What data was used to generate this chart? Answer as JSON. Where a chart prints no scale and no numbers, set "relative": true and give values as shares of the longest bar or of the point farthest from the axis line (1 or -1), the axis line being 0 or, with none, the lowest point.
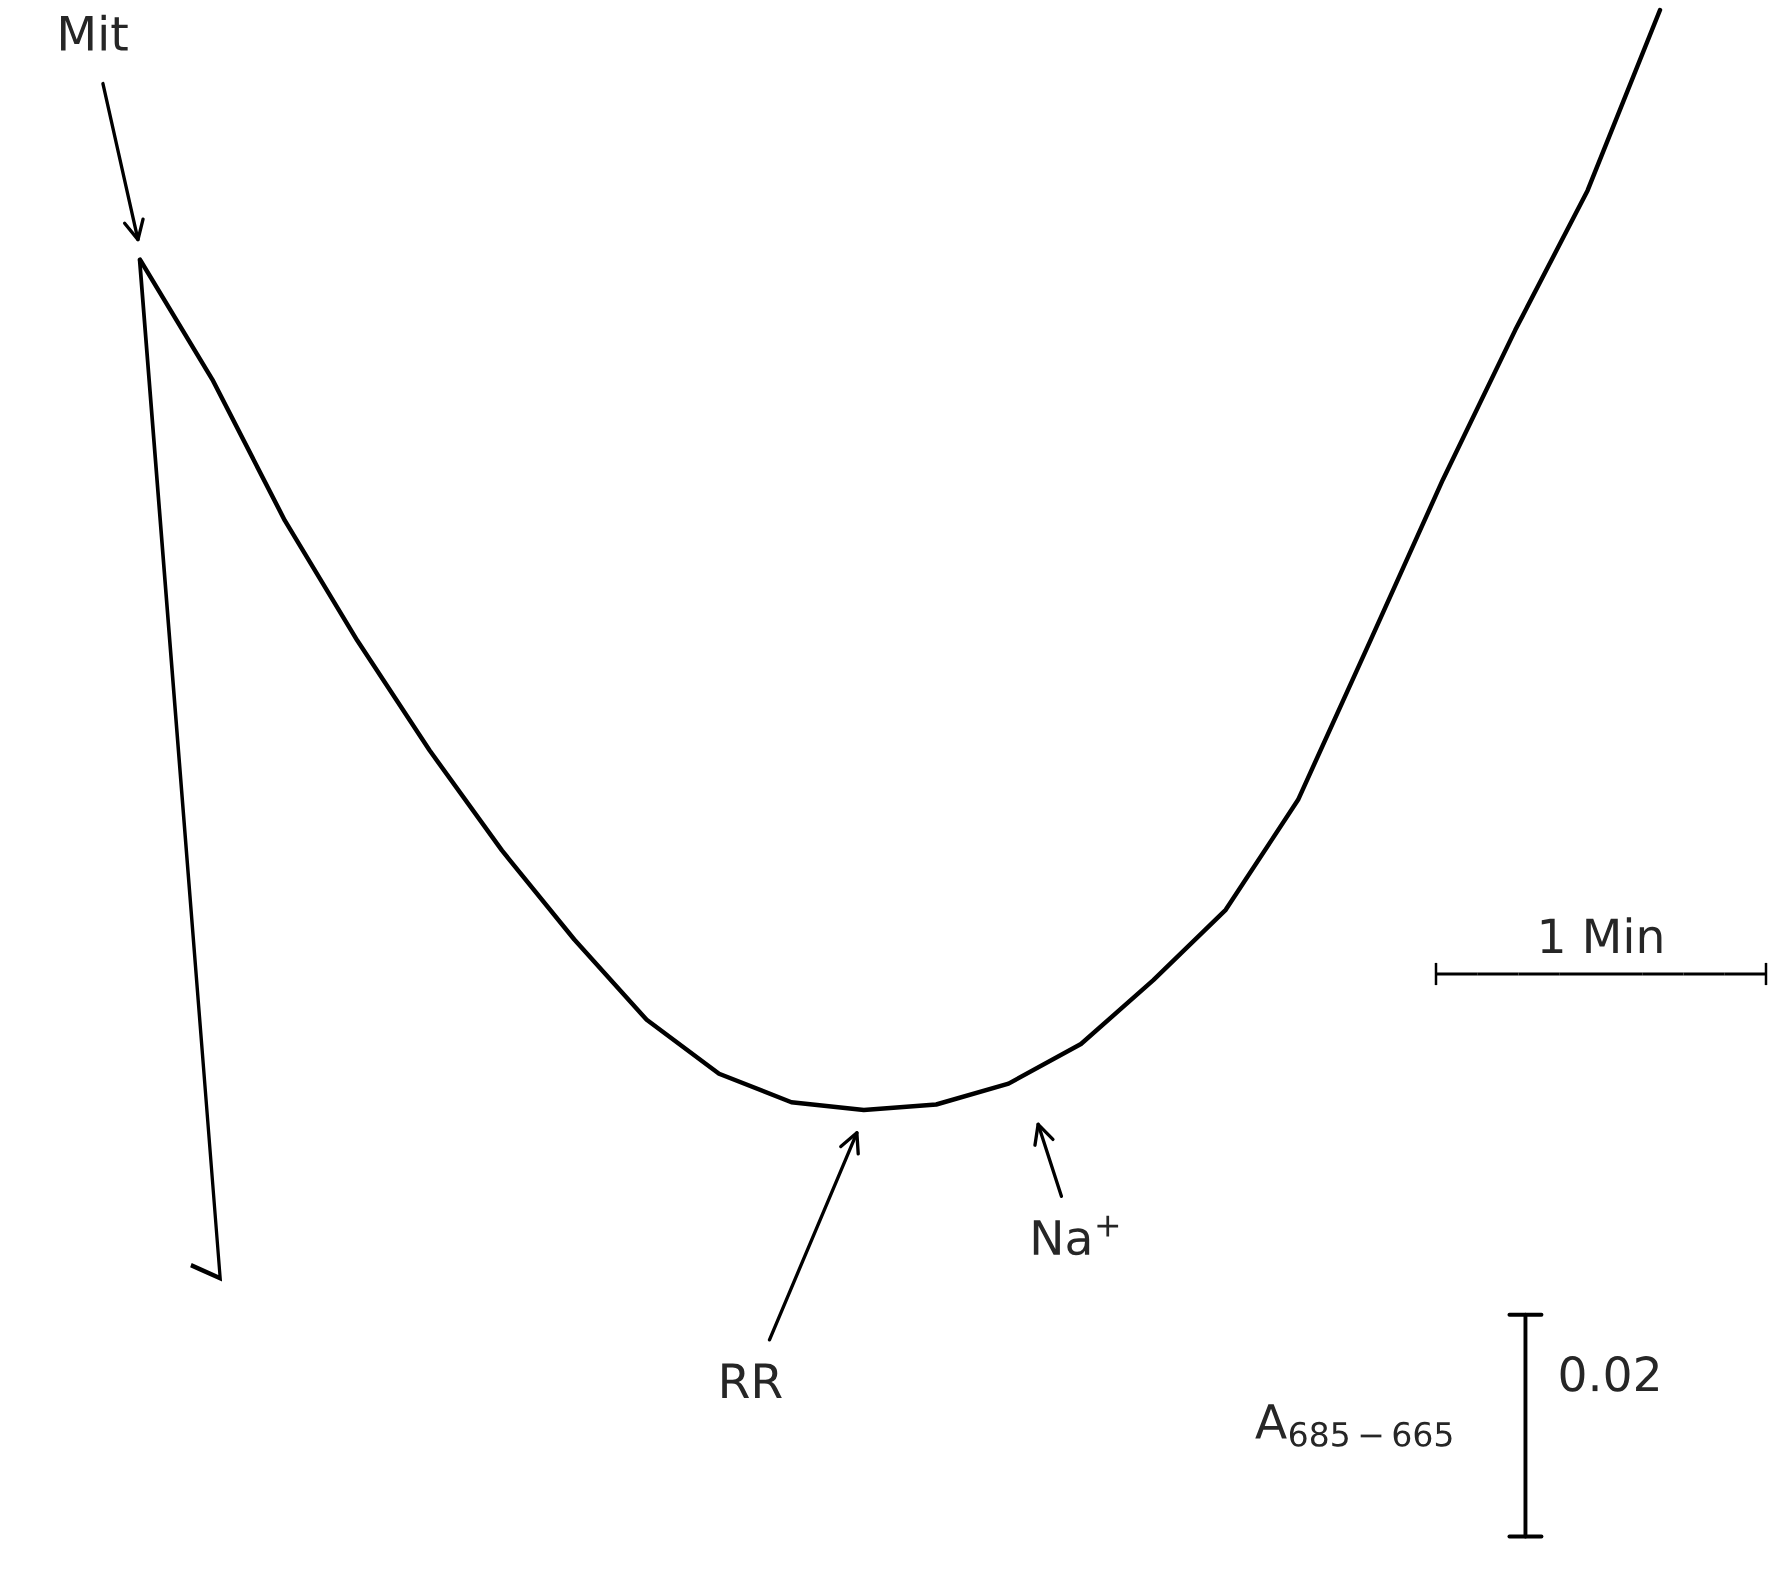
{
  "chart_data": {
    "type": "line",
    "relative": true,
    "tick_labels": false,
    "marker": "none",
    "line_style": "solid",
    "categories": [
      null,
      null,
      null,
      null,
      null,
      null,
      null,
      null,
      null,
      null,
      null,
      null,
      null,
      null,
      null,
      null,
      null,
      null,
      null,
      null,
      null,
      null
    ],
    "series": [
      {
        "color": "#000000",
        "values": [
          0.773,
          0.664,
          0.536,
          0.427,
          0.327,
          0.236,
          0.155,
          0.082,
          0.033,
          0.007,
          0,
          0.005,
          0.024,
          0.06,
          0.118,
          0.182,
          0.282,
          0.427,
          0.573,
          0.709,
          0.836,
          1
        ]
      }
    ],
    "annotations": [
      "Mit",
      "RR",
      "Na$^{+}$",
      "1 Min",
      "A$_{685−665}$",
      "0.02"
    ]
  }
}
